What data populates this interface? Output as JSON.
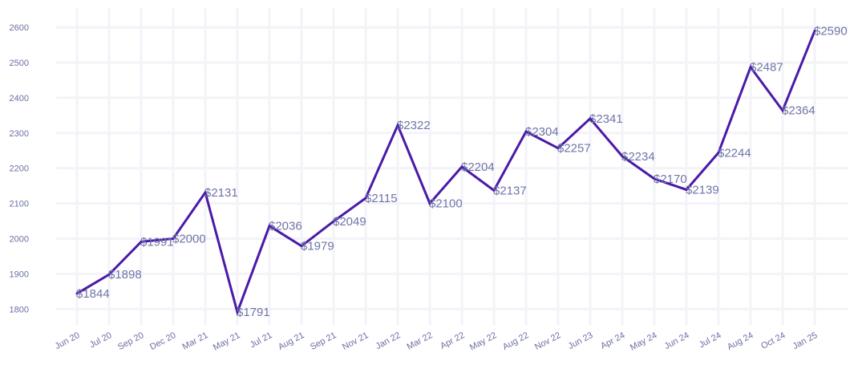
{
  "chart_data": {
    "type": "line",
    "title": "",
    "xlabel": "",
    "ylabel": "",
    "categories": [
      "Jun 20",
      "Jul 20",
      "Sep 20",
      "Dec 20",
      "Mar 21",
      "May 21",
      "Jul 21",
      "Aug 21",
      "Sep 21",
      "Nov 21",
      "Jan 22",
      "Mar 22",
      "Apr 22",
      "May 22",
      "Aug 22",
      "Nov 22",
      "Jun 23",
      "Apr 24",
      "May 24",
      "Jun 24",
      "Jul 24",
      "Aug 24",
      "Oct 24",
      "Jan 25"
    ],
    "series": [
      {
        "values": [
          1844,
          1898,
          1991,
          2000,
          2131,
          1791,
          2036,
          1979,
          2049,
          2115,
          2322,
          2100,
          2204,
          2137,
          2304,
          2257,
          2341,
          2234,
          2170,
          2139,
          2244,
          2487,
          2364,
          2590
        ],
        "data_labels": [
          "$1844",
          "$1898",
          "$1991",
          "$2000",
          "$2131",
          "$1791",
          "$2036",
          "$1979",
          "$2049",
          "$2115",
          "$2322",
          "$2100",
          "$2204",
          "$2137",
          "$2304",
          "$2257",
          "$2341",
          "$2234",
          "$2170",
          "$2139",
          "$2244",
          "$2487",
          "$2364",
          "$2590"
        ]
      }
    ],
    "yticks": [
      1800,
      1900,
      2000,
      2100,
      2200,
      2300,
      2400,
      2500,
      2600
    ],
    "ylim": [
      1755,
      2655
    ],
    "grid": true,
    "legend": "none",
    "colors": {
      "line": "#4a1aa8",
      "grid": "#f3f3f8",
      "tick_text": "#6b6fa3",
      "label_text": "#6f74a8"
    }
  }
}
